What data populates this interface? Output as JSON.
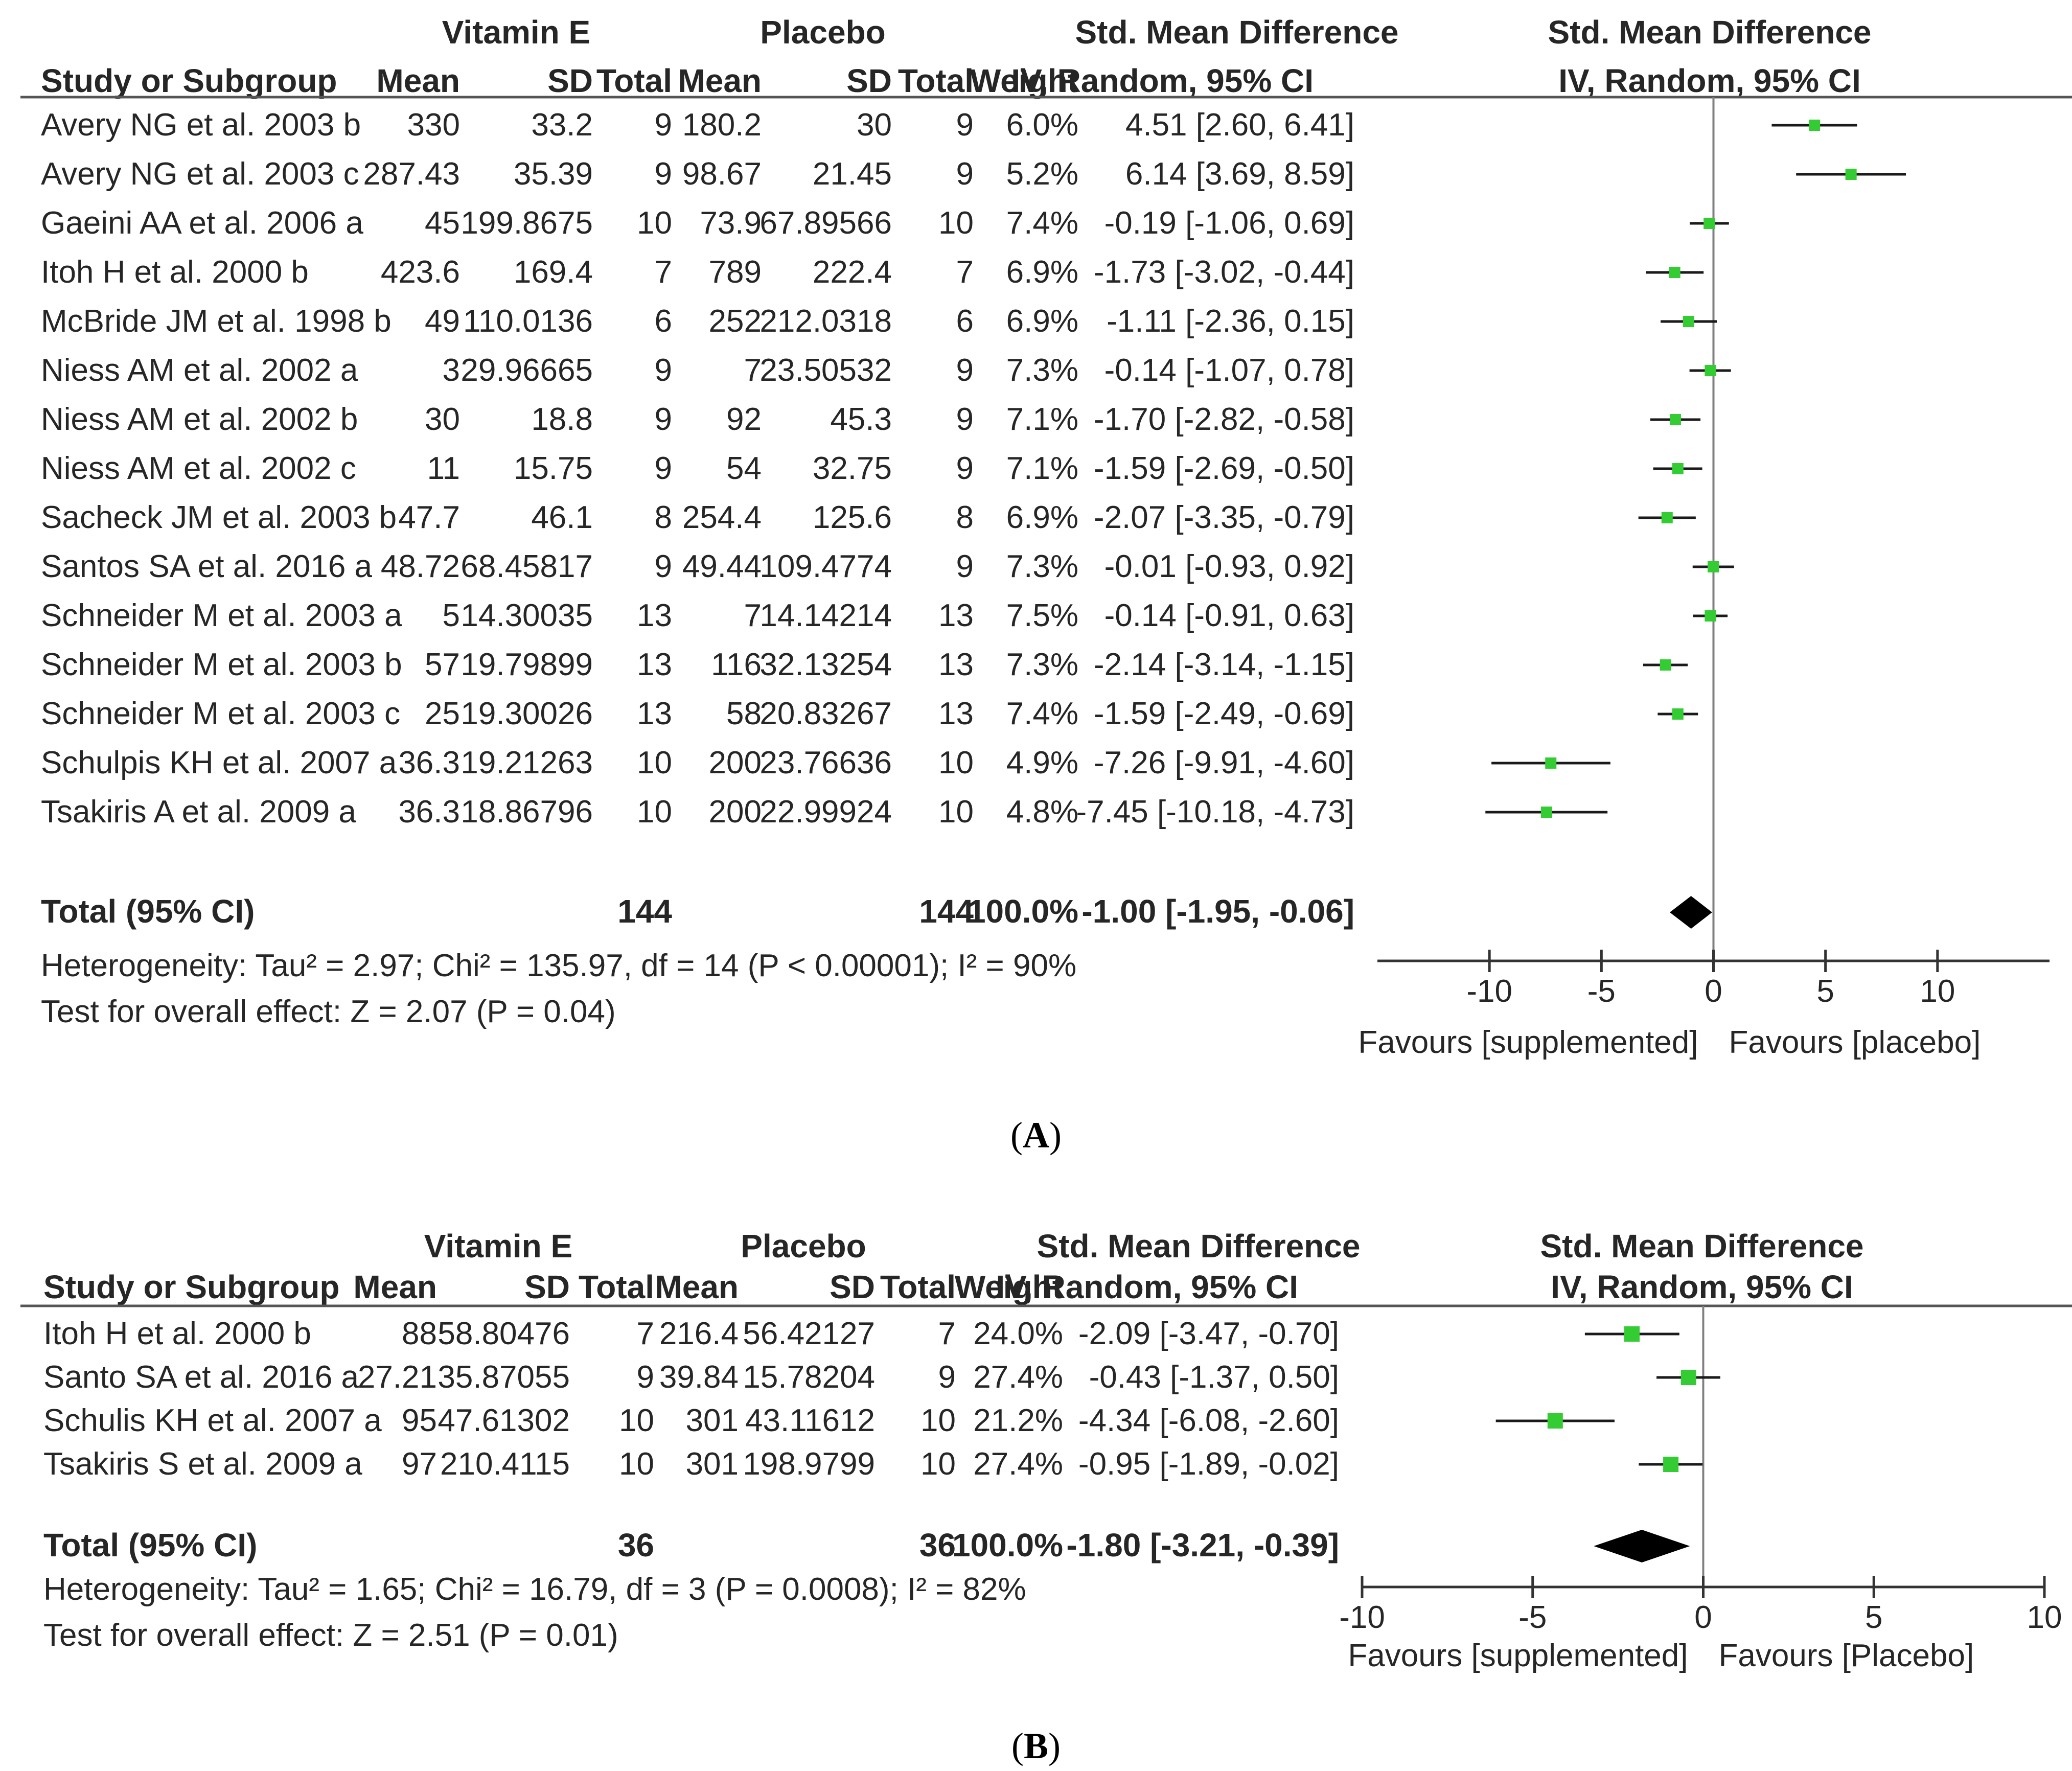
{
  "chart_data": [
    {
      "type": "forest",
      "panel_label": "A",
      "headers": {
        "group1": "Vitamin E",
        "group2": "Placebo",
        "smd": "Std. Mean Difference",
        "plot": "Std. Mean Difference",
        "study": "Study or Subgroup",
        "mean": "Mean",
        "sd": "SD",
        "total": "Total",
        "weight": "Weight",
        "method": "IV, Random, 95% CI"
      },
      "studies": [
        {
          "name": "Avery NG et al. 2003 b",
          "m1": "330",
          "sd1": "33.2",
          "n1": "9",
          "m2": "180.2",
          "sd2": "30",
          "n2": "9",
          "weight": "6.0%",
          "ci_text": "4.51 [2.60, 6.41]",
          "est": 4.51,
          "lo": 2.6,
          "hi": 6.41
        },
        {
          "name": "Avery NG et al. 2003 c",
          "m1": "287.43",
          "sd1": "35.39",
          "n1": "9",
          "m2": "98.67",
          "sd2": "21.45",
          "n2": "9",
          "weight": "5.2%",
          "ci_text": "6.14 [3.69, 8.59]",
          "est": 6.14,
          "lo": 3.69,
          "hi": 8.59
        },
        {
          "name": "Gaeini AA et al. 2006 a",
          "m1": "45",
          "sd1": "199.8675",
          "n1": "10",
          "m2": "73.9",
          "sd2": "67.89566",
          "n2": "10",
          "weight": "7.4%",
          "ci_text": "-0.19 [-1.06, 0.69]",
          "est": -0.19,
          "lo": -1.06,
          "hi": 0.69
        },
        {
          "name": "Itoh H et al. 2000 b",
          "m1": "423.6",
          "sd1": "169.4",
          "n1": "7",
          "m2": "789",
          "sd2": "222.4",
          "n2": "7",
          "weight": "6.9%",
          "ci_text": "-1.73 [-3.02, -0.44]",
          "est": -1.73,
          "lo": -3.02,
          "hi": -0.44
        },
        {
          "name": "McBride JM et al. 1998 b",
          "m1": "49",
          "sd1": "110.0136",
          "n1": "6",
          "m2": "252",
          "sd2": "212.0318",
          "n2": "6",
          "weight": "6.9%",
          "ci_text": "-1.11 [-2.36, 0.15]",
          "est": -1.11,
          "lo": -2.36,
          "hi": 0.15
        },
        {
          "name": "Niess AM et al. 2002 a",
          "m1": "3",
          "sd1": "29.96665",
          "n1": "9",
          "m2": "7",
          "sd2": "23.50532",
          "n2": "9",
          "weight": "7.3%",
          "ci_text": "-0.14 [-1.07, 0.78]",
          "est": -0.14,
          "lo": -1.07,
          "hi": 0.78
        },
        {
          "name": "Niess AM et al. 2002 b",
          "m1": "30",
          "sd1": "18.8",
          "n1": "9",
          "m2": "92",
          "sd2": "45.3",
          "n2": "9",
          "weight": "7.1%",
          "ci_text": "-1.70 [-2.82, -0.58]",
          "est": -1.7,
          "lo": -2.82,
          "hi": -0.58
        },
        {
          "name": "Niess AM et al. 2002 c",
          "m1": "11",
          "sd1": "15.75",
          "n1": "9",
          "m2": "54",
          "sd2": "32.75",
          "n2": "9",
          "weight": "7.1%",
          "ci_text": "-1.59 [-2.69, -0.50]",
          "est": -1.59,
          "lo": -2.69,
          "hi": -0.5
        },
        {
          "name": "Sacheck JM et al. 2003 b",
          "m1": "47.7",
          "sd1": "46.1",
          "n1": "8",
          "m2": "254.4",
          "sd2": "125.6",
          "n2": "8",
          "weight": "6.9%",
          "ci_text": "-2.07 [-3.35, -0.79]",
          "est": -2.07,
          "lo": -3.35,
          "hi": -0.79
        },
        {
          "name": "Santos SA et al. 2016 a",
          "m1": "48.72",
          "sd1": "68.45817",
          "n1": "9",
          "m2": "49.44",
          "sd2": "109.4774",
          "n2": "9",
          "weight": "7.3%",
          "ci_text": "-0.01 [-0.93, 0.92]",
          "est": -0.01,
          "lo": -0.93,
          "hi": 0.92
        },
        {
          "name": "Schneider M et al. 2003 a",
          "m1": "5",
          "sd1": "14.30035",
          "n1": "13",
          "m2": "7",
          "sd2": "14.14214",
          "n2": "13",
          "weight": "7.5%",
          "ci_text": "-0.14 [-0.91, 0.63]",
          "est": -0.14,
          "lo": -0.91,
          "hi": 0.63
        },
        {
          "name": "Schneider M et al. 2003 b",
          "m1": "57",
          "sd1": "19.79899",
          "n1": "13",
          "m2": "116",
          "sd2": "32.13254",
          "n2": "13",
          "weight": "7.3%",
          "ci_text": "-2.14 [-3.14, -1.15]",
          "est": -2.14,
          "lo": -3.14,
          "hi": -1.15
        },
        {
          "name": "Schneider M et al. 2003 c",
          "m1": "25",
          "sd1": "19.30026",
          "n1": "13",
          "m2": "58",
          "sd2": "20.83267",
          "n2": "13",
          "weight": "7.4%",
          "ci_text": "-1.59 [-2.49, -0.69]",
          "est": -1.59,
          "lo": -2.49,
          "hi": -0.69
        },
        {
          "name": "Schulpis KH et al. 2007 a",
          "m1": "36.3",
          "sd1": "19.21263",
          "n1": "10",
          "m2": "200",
          "sd2": "23.76636",
          "n2": "10",
          "weight": "4.9%",
          "ci_text": "-7.26 [-9.91, -4.60]",
          "est": -7.26,
          "lo": -9.91,
          "hi": -4.6
        },
        {
          "name": "Tsakiris A et al. 2009 a",
          "m1": "36.3",
          "sd1": "18.86796",
          "n1": "10",
          "m2": "200",
          "sd2": "22.99924",
          "n2": "10",
          "weight": "4.8%",
          "ci_text": "-7.45 [-10.18, -4.73]",
          "est": -7.45,
          "lo": -10.18,
          "hi": -4.73
        }
      ],
      "total": {
        "label": "Total (95% CI)",
        "n1": "144",
        "n2": "144",
        "weight": "100.0%",
        "ci_text": "-1.00 [-1.95, -0.06]",
        "est": -1.0,
        "lo": -1.95,
        "hi": -0.06
      },
      "heterogeneity": "Heterogeneity: Tau² = 2.97; Chi² = 135.97, df = 14 (P < 0.00001); I² = 90%",
      "overall_effect": "Test for overall effect: Z = 2.07 (P = 0.04)",
      "axis": {
        "xlim": [
          -15,
          15
        ],
        "ticks": [
          -10,
          -5,
          0,
          5,
          10
        ],
        "tick_labels": [
          "-10",
          "-5",
          "0",
          "5",
          "10"
        ]
      },
      "favours_left": "Favours [supplemented]",
      "favours_right": "Favours [placebo]",
      "colors": {
        "marker": "#33cc33",
        "line": "#1a1a1a",
        "diamond": "#000000",
        "zero": "#7f7f7f"
      }
    },
    {
      "type": "forest",
      "panel_label": "B",
      "headers": {
        "group1": "Vitamin E",
        "group2": "Placebo",
        "smd": "Std. Mean Difference",
        "plot": "Std. Mean Difference",
        "study": "Study or Subgroup",
        "mean": "Mean",
        "sd": "SD",
        "total": "Total",
        "weight": "Weight",
        "method": "IV, Random, 95% CI"
      },
      "studies": [
        {
          "name": "Itoh H et al. 2000 b",
          "m1": "88",
          "sd1": "58.80476",
          "n1": "7",
          "m2": "216.4",
          "sd2": "56.42127",
          "n2": "7",
          "weight": "24.0%",
          "ci_text": "-2.09 [-3.47, -0.70]",
          "est": -2.09,
          "lo": -3.47,
          "hi": -0.7
        },
        {
          "name": "Santo SA et al. 2016 a",
          "m1": "27.21",
          "sd1": "35.87055",
          "n1": "9",
          "m2": "39.84",
          "sd2": "15.78204",
          "n2": "9",
          "weight": "27.4%",
          "ci_text": "-0.43 [-1.37, 0.50]",
          "est": -0.43,
          "lo": -1.37,
          "hi": 0.5
        },
        {
          "name": "Schulis KH et al. 2007 a",
          "m1": "95",
          "sd1": "47.61302",
          "n1": "10",
          "m2": "301",
          "sd2": "43.11612",
          "n2": "10",
          "weight": "21.2%",
          "ci_text": "-4.34 [-6.08, -2.60]",
          "est": -4.34,
          "lo": -6.08,
          "hi": -2.6
        },
        {
          "name": "Tsakiris S et al. 2009 a",
          "m1": "97",
          "sd1": "210.4115",
          "n1": "10",
          "m2": "301",
          "sd2": "198.9799",
          "n2": "10",
          "weight": "27.4%",
          "ci_text": "-0.95 [-1.89, -0.02]",
          "est": -0.95,
          "lo": -1.89,
          "hi": -0.02
        }
      ],
      "total": {
        "label": "Total (95% CI)",
        "n1": "36",
        "n2": "36",
        "weight": "100.0%",
        "ci_text": "-1.80 [-3.21, -0.39]",
        "est": -1.8,
        "lo": -3.21,
        "hi": -0.39
      },
      "heterogeneity": "Heterogeneity: Tau² = 1.65; Chi² = 16.79, df = 3 (P = 0.0008); I² = 82%",
      "overall_effect": "Test for overall effect: Z = 2.51 (P = 0.01)",
      "axis": {
        "xlim": [
          -10,
          10
        ],
        "ticks": [
          -10,
          -5,
          0,
          5,
          10
        ],
        "tick_labels": [
          "-10",
          "-5",
          "0",
          "5",
          "10"
        ]
      },
      "favours_left": "Favours [supplemented]",
      "favours_right": "Favours [Placebo]",
      "colors": {
        "marker": "#33cc33",
        "line": "#1a1a1a",
        "diamond": "#000000",
        "zero": "#7f7f7f"
      }
    }
  ]
}
